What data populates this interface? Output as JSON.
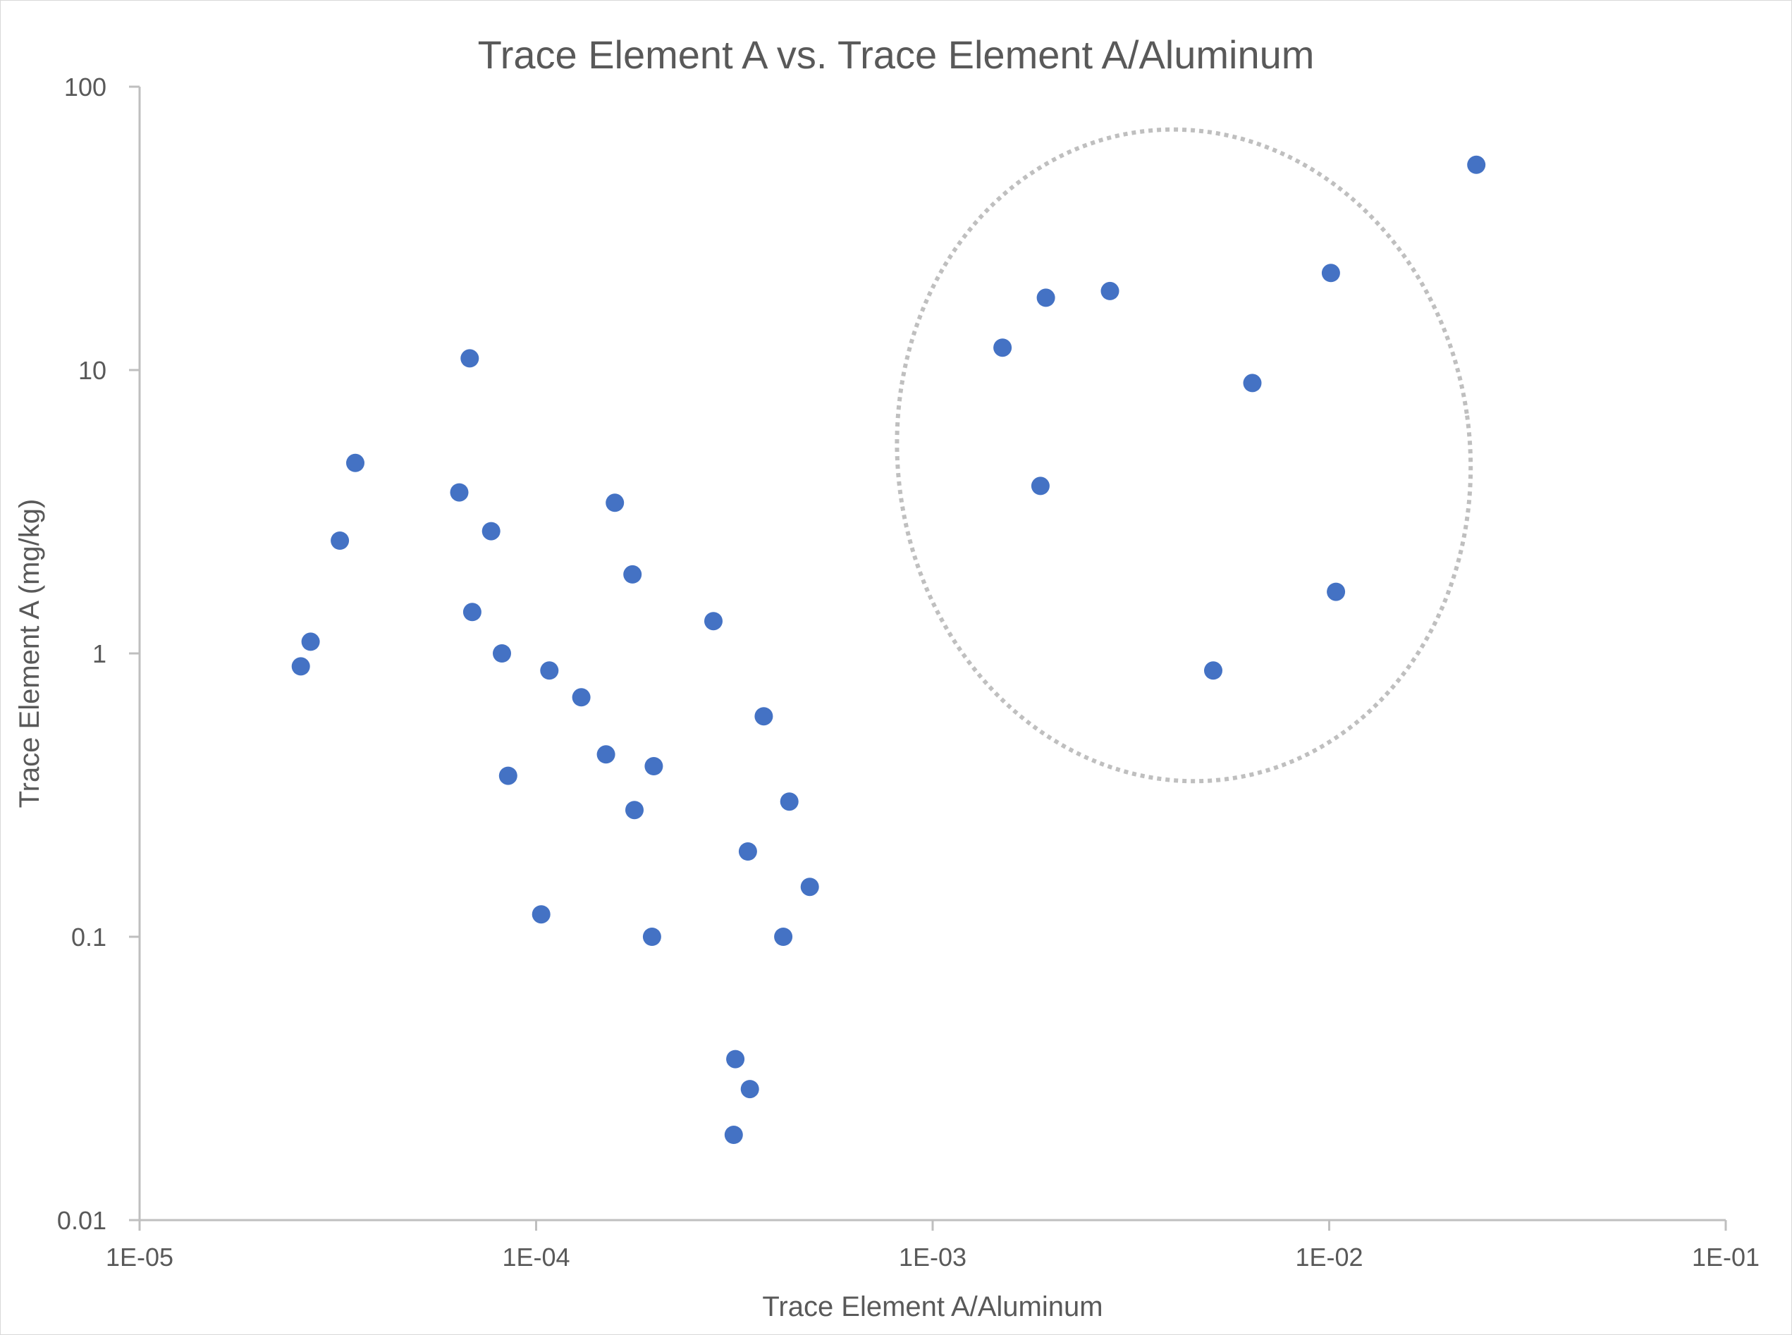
{
  "chart_data": {
    "type": "scatter",
    "title": "Trace Element A vs. Trace Element A/Aluminum",
    "xlabel": "Trace Element A/Aluminum",
    "ylabel": "Trace Element A (mg/kg)",
    "x_scale": "log",
    "y_scale": "log",
    "xlim": [
      1e-05,
      0.1
    ],
    "ylim": [
      0.01,
      100
    ],
    "x_tick_labels": [
      "1E-05",
      "1E-04",
      "1E-03",
      "1E-02",
      "1E-01"
    ],
    "y_tick_labels": [
      "0.01",
      "0.1",
      "1",
      "10",
      "100"
    ],
    "grid": false,
    "legend": "none",
    "marker_color": "#4472C4",
    "axis_color": "#bfbfbf",
    "text_color": "#595959",
    "annotation": {
      "type": "dashed-ellipse",
      "color": "#bfbfbf",
      "center": [
        0.0043,
        5.0
      ],
      "x_range": [
        0.00083,
        0.023
      ],
      "y_range": [
        0.52,
        105
      ]
    },
    "series": [
      {
        "points": [
          {
            "x": 2.55e-05,
            "y": 0.9
          },
          {
            "x": 2.7e-05,
            "y": 1.1
          },
          {
            "x": 3.2e-05,
            "y": 2.5
          },
          {
            "x": 3.5e-05,
            "y": 4.7
          },
          {
            "x": 6.4e-05,
            "y": 3.7
          },
          {
            "x": 6.8e-05,
            "y": 11.0
          },
          {
            "x": 6.9e-05,
            "y": 1.4
          },
          {
            "x": 7.7e-05,
            "y": 2.7
          },
          {
            "x": 8.2e-05,
            "y": 1.0
          },
          {
            "x": 8.5e-05,
            "y": 0.37
          },
          {
            "x": 0.000103,
            "y": 0.12
          },
          {
            "x": 0.000108,
            "y": 0.87
          },
          {
            "x": 0.00013,
            "y": 0.7
          },
          {
            "x": 0.00015,
            "y": 0.44
          },
          {
            "x": 0.000158,
            "y": 3.4
          },
          {
            "x": 0.000175,
            "y": 1.9
          },
          {
            "x": 0.000177,
            "y": 0.28
          },
          {
            "x": 0.000196,
            "y": 0.1
          },
          {
            "x": 0.000198,
            "y": 0.4
          },
          {
            "x": 0.00028,
            "y": 1.3
          },
          {
            "x": 0.000315,
            "y": 0.02
          },
          {
            "x": 0.000318,
            "y": 0.037
          },
          {
            "x": 0.000342,
            "y": 0.2
          },
          {
            "x": 0.000346,
            "y": 0.029
          },
          {
            "x": 0.000375,
            "y": 0.6
          },
          {
            "x": 0.00042,
            "y": 0.1
          },
          {
            "x": 0.000435,
            "y": 0.3
          },
          {
            "x": 0.00049,
            "y": 0.15
          },
          {
            "x": 0.0015,
            "y": 12.0
          },
          {
            "x": 0.00187,
            "y": 3.9
          },
          {
            "x": 0.00193,
            "y": 18.0
          },
          {
            "x": 0.0028,
            "y": 19.0
          },
          {
            "x": 0.0051,
            "y": 0.87
          },
          {
            "x": 0.0064,
            "y": 9.0
          },
          {
            "x": 0.0101,
            "y": 22.0
          },
          {
            "x": 0.0104,
            "y": 1.65
          },
          {
            "x": 0.0235,
            "y": 53.0
          }
        ]
      }
    ]
  }
}
